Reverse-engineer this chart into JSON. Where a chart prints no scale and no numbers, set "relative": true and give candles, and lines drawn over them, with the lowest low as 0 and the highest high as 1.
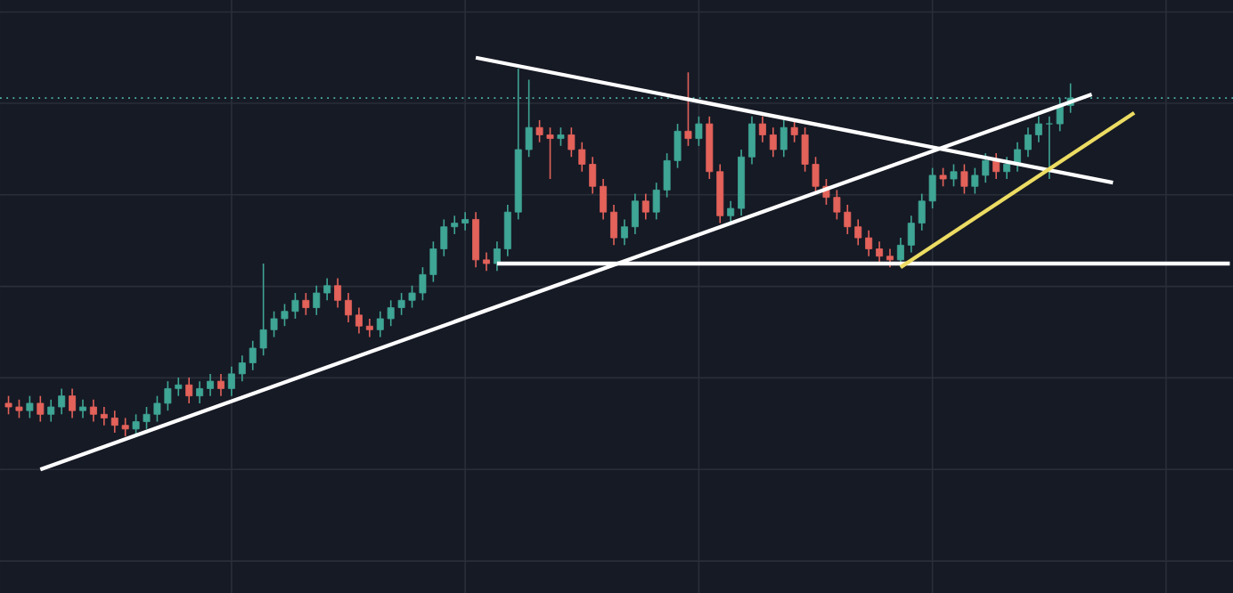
{
  "chart_data": {
    "type": "candlestick",
    "relative": true,
    "grid": true,
    "tick_labels": false,
    "categories": [
      null,
      null,
      null,
      null,
      null,
      null,
      null,
      null,
      null,
      null,
      null,
      null,
      null,
      null,
      null,
      null,
      null,
      null,
      null,
      null,
      null,
      null,
      null,
      null,
      null,
      null,
      null,
      null,
      null,
      null,
      null,
      null,
      null,
      null,
      null,
      null,
      null,
      null,
      null,
      null,
      null,
      null,
      null,
      null,
      null,
      null,
      null,
      null,
      null,
      null,
      null,
      null,
      null,
      null,
      null,
      null,
      null,
      null,
      null,
      null,
      null,
      null,
      null,
      null,
      null,
      null,
      null,
      null,
      null,
      null,
      null,
      null,
      null,
      null,
      null,
      null,
      null,
      null,
      null,
      null,
      null,
      null,
      null,
      null,
      null,
      null,
      null,
      null,
      null,
      null,
      null,
      null,
      null,
      null,
      null,
      null,
      null,
      null,
      null,
      null,
      null,
      null,
      null,
      null,
      null,
      null,
      null,
      null,
      null,
      null,
      null,
      null,
      null,
      null,
      null,
      null
    ],
    "ohlc": [
      [
        0.09,
        0.11,
        0.06,
        0.08
      ],
      [
        0.08,
        0.1,
        0.05,
        0.07
      ],
      [
        0.07,
        0.11,
        0.05,
        0.09
      ],
      [
        0.09,
        0.11,
        0.04,
        0.06
      ],
      [
        0.06,
        0.1,
        0.04,
        0.08
      ],
      [
        0.08,
        0.13,
        0.06,
        0.11
      ],
      [
        0.11,
        0.13,
        0.05,
        0.07
      ],
      [
        0.07,
        0.1,
        0.05,
        0.08
      ],
      [
        0.08,
        0.1,
        0.04,
        0.06
      ],
      [
        0.06,
        0.08,
        0.03,
        0.05
      ],
      [
        0.05,
        0.07,
        0.01,
        0.03
      ],
      [
        0.03,
        0.05,
        0,
        0.02
      ],
      [
        0.02,
        0.06,
        0,
        0.04
      ],
      [
        0.04,
        0.08,
        0.02,
        0.06
      ],
      [
        0.06,
        0.11,
        0.04,
        0.09
      ],
      [
        0.09,
        0.15,
        0.07,
        0.13
      ],
      [
        0.13,
        0.16,
        0.11,
        0.14
      ],
      [
        0.14,
        0.16,
        0.09,
        0.11
      ],
      [
        0.11,
        0.15,
        0.09,
        0.13
      ],
      [
        0.13,
        0.17,
        0.11,
        0.15
      ],
      [
        0.15,
        0.17,
        0.11,
        0.13
      ],
      [
        0.13,
        0.19,
        0.11,
        0.17
      ],
      [
        0.17,
        0.22,
        0.15,
        0.2
      ],
      [
        0.2,
        0.26,
        0.18,
        0.24
      ],
      [
        0.24,
        0.47,
        0.22,
        0.29
      ],
      [
        0.29,
        0.34,
        0.27,
        0.32
      ],
      [
        0.32,
        0.36,
        0.3,
        0.34
      ],
      [
        0.34,
        0.39,
        0.32,
        0.37
      ],
      [
        0.37,
        0.39,
        0.33,
        0.35
      ],
      [
        0.35,
        0.41,
        0.33,
        0.39
      ],
      [
        0.39,
        0.43,
        0.37,
        0.41
      ],
      [
        0.41,
        0.43,
        0.35,
        0.37
      ],
      [
        0.37,
        0.39,
        0.31,
        0.33
      ],
      [
        0.33,
        0.35,
        0.28,
        0.3
      ],
      [
        0.3,
        0.32,
        0.27,
        0.29
      ],
      [
        0.29,
        0.34,
        0.27,
        0.32
      ],
      [
        0.32,
        0.37,
        0.3,
        0.35
      ],
      [
        0.35,
        0.39,
        0.33,
        0.37
      ],
      [
        0.37,
        0.41,
        0.35,
        0.39
      ],
      [
        0.39,
        0.46,
        0.37,
        0.44
      ],
      [
        0.44,
        0.53,
        0.42,
        0.51
      ],
      [
        0.51,
        0.59,
        0.49,
        0.57
      ],
      [
        0.57,
        0.6,
        0.55,
        0.58
      ],
      [
        0.58,
        0.61,
        0.56,
        0.59
      ],
      [
        0.59,
        0.61,
        0.46,
        0.48
      ],
      [
        0.48,
        0.5,
        0.45,
        0.47
      ],
      [
        0.47,
        0.53,
        0.45,
        0.51
      ],
      [
        0.51,
        0.63,
        0.49,
        0.61
      ],
      [
        0.61,
        1,
        0.59,
        0.78
      ],
      [
        0.78,
        0.97,
        0.76,
        0.84
      ],
      [
        0.84,
        0.86,
        0.8,
        0.82
      ],
      [
        0.82,
        0.84,
        0.7,
        0.81
      ],
      [
        0.81,
        0.84,
        0.79,
        0.82
      ],
      [
        0.82,
        0.84,
        0.76,
        0.78
      ],
      [
        0.78,
        0.8,
        0.72,
        0.74
      ],
      [
        0.74,
        0.76,
        0.66,
        0.68
      ],
      [
        0.68,
        0.7,
        0.59,
        0.61
      ],
      [
        0.61,
        0.63,
        0.52,
        0.54
      ],
      [
        0.54,
        0.59,
        0.52,
        0.57
      ],
      [
        0.57,
        0.66,
        0.55,
        0.64
      ],
      [
        0.64,
        0.66,
        0.59,
        0.61
      ],
      [
        0.61,
        0.69,
        0.59,
        0.67
      ],
      [
        0.67,
        0.77,
        0.65,
        0.75
      ],
      [
        0.75,
        0.85,
        0.73,
        0.83
      ],
      [
        0.83,
        0.99,
        0.79,
        0.81
      ],
      [
        0.81,
        0.87,
        0.79,
        0.85
      ],
      [
        0.85,
        0.87,
        0.7,
        0.72
      ],
      [
        0.72,
        0.74,
        0.58,
        0.6
      ],
      [
        0.6,
        0.64,
        0.58,
        0.62
      ],
      [
        0.62,
        0.78,
        0.6,
        0.76
      ],
      [
        0.76,
        0.87,
        0.74,
        0.85
      ],
      [
        0.85,
        0.87,
        0.8,
        0.82
      ],
      [
        0.82,
        0.84,
        0.76,
        0.78
      ],
      [
        0.78,
        0.86,
        0.76,
        0.84
      ],
      [
        0.84,
        0.86,
        0.8,
        0.82
      ],
      [
        0.82,
        0.84,
        0.72,
        0.74
      ],
      [
        0.74,
        0.76,
        0.66,
        0.68
      ],
      [
        0.68,
        0.7,
        0.63,
        0.65
      ],
      [
        0.65,
        0.67,
        0.59,
        0.61
      ],
      [
        0.61,
        0.63,
        0.55,
        0.57
      ],
      [
        0.57,
        0.59,
        0.52,
        0.54
      ],
      [
        0.54,
        0.56,
        0.49,
        0.51
      ],
      [
        0.51,
        0.53,
        0.47,
        0.49
      ],
      [
        0.49,
        0.51,
        0.46,
        0.48
      ],
      [
        0.48,
        0.54,
        0.46,
        0.52
      ],
      [
        0.52,
        0.6,
        0.5,
        0.58
      ],
      [
        0.58,
        0.66,
        0.56,
        0.64
      ],
      [
        0.64,
        0.73,
        0.62,
        0.71
      ],
      [
        0.71,
        0.73,
        0.68,
        0.7
      ],
      [
        0.7,
        0.74,
        0.68,
        0.72
      ],
      [
        0.72,
        0.74,
        0.66,
        0.68
      ],
      [
        0.68,
        0.73,
        0.66,
        0.71
      ],
      [
        0.71,
        0.77,
        0.69,
        0.75
      ],
      [
        0.75,
        0.77,
        0.7,
        0.72
      ],
      [
        0.72,
        0.76,
        0.7,
        0.74
      ],
      [
        0.74,
        0.8,
        0.72,
        0.78
      ],
      [
        0.78,
        0.84,
        0.76,
        0.82
      ],
      [
        0.82,
        0.87,
        0.8,
        0.85
      ],
      [
        0.85,
        0.87,
        0.7,
        0.85
      ],
      [
        0.85,
        0.92,
        0.83,
        0.9
      ],
      [
        0.9,
        0.96,
        0.88,
        0.92
      ],
      null,
      null,
      null,
      null,
      null,
      null,
      null,
      null,
      null,
      null,
      null,
      null,
      null,
      null,
      null
    ],
    "series": [
      {
        "type": "line",
        "color": "#ffffff",
        "values": [
          null,
          null,
          null,
          -0.09,
          null,
          null,
          null,
          null,
          null,
          null,
          null,
          null,
          null,
          null,
          null,
          null,
          null,
          null,
          null,
          null,
          null,
          null,
          null,
          null,
          null,
          null,
          null,
          null,
          null,
          null,
          null,
          null,
          null,
          null,
          null,
          null,
          null,
          null,
          null,
          null,
          null,
          null,
          null,
          null,
          null,
          null,
          null,
          null,
          null,
          null,
          null,
          null,
          null,
          null,
          null,
          null,
          null,
          null,
          null,
          null,
          null,
          null,
          null,
          null,
          null,
          null,
          null,
          null,
          null,
          null,
          null,
          null,
          null,
          null,
          null,
          null,
          null,
          null,
          null,
          null,
          null,
          null,
          null,
          null,
          null,
          null,
          null,
          null,
          null,
          null,
          null,
          null,
          null,
          null,
          null,
          null,
          null,
          null,
          null,
          null,
          null,
          null,
          0.93,
          null,
          null,
          null,
          null,
          null,
          null,
          null,
          null,
          null,
          null,
          null,
          null,
          null
        ]
      },
      {
        "type": "line",
        "color": "#ffffff",
        "values": [
          null,
          null,
          null,
          null,
          null,
          null,
          null,
          null,
          null,
          null,
          null,
          null,
          null,
          null,
          null,
          null,
          null,
          null,
          null,
          null,
          null,
          null,
          null,
          null,
          null,
          null,
          null,
          null,
          null,
          null,
          null,
          null,
          null,
          null,
          null,
          null,
          null,
          null,
          null,
          null,
          null,
          null,
          null,
          null,
          1.03,
          null,
          null,
          null,
          null,
          null,
          null,
          null,
          null,
          null,
          null,
          null,
          null,
          null,
          null,
          null,
          null,
          null,
          null,
          null,
          null,
          null,
          null,
          null,
          null,
          null,
          null,
          null,
          null,
          null,
          null,
          null,
          null,
          null,
          null,
          null,
          null,
          null,
          null,
          null,
          null,
          null,
          null,
          null,
          null,
          null,
          null,
          null,
          null,
          null,
          null,
          null,
          null,
          null,
          null,
          null,
          null,
          null,
          null,
          null,
          0.69,
          null,
          null,
          null,
          null,
          null,
          null,
          null,
          null,
          null,
          null,
          null
        ]
      },
      {
        "type": "line",
        "color": "#ffffff",
        "values": [
          null,
          null,
          null,
          null,
          null,
          null,
          null,
          null,
          null,
          null,
          null,
          null,
          null,
          null,
          null,
          null,
          null,
          null,
          null,
          null,
          null,
          null,
          null,
          null,
          null,
          null,
          null,
          null,
          null,
          null,
          null,
          null,
          null,
          null,
          null,
          null,
          null,
          null,
          null,
          null,
          null,
          null,
          null,
          null,
          null,
          null,
          0.47,
          null,
          null,
          null,
          null,
          null,
          null,
          null,
          null,
          null,
          null,
          null,
          null,
          null,
          null,
          null,
          null,
          null,
          null,
          null,
          null,
          null,
          null,
          null,
          null,
          null,
          null,
          null,
          null,
          null,
          null,
          null,
          null,
          null,
          null,
          null,
          null,
          null,
          null,
          null,
          null,
          null,
          null,
          null,
          null,
          null,
          null,
          null,
          null,
          null,
          null,
          null,
          null,
          null,
          null,
          null,
          null,
          null,
          null,
          null,
          null,
          null,
          null,
          null,
          null,
          null,
          null,
          null,
          null,
          0.47
        ]
      },
      {
        "type": "line",
        "color": "#ecdc63",
        "values": [
          null,
          null,
          null,
          null,
          null,
          null,
          null,
          null,
          null,
          null,
          null,
          null,
          null,
          null,
          null,
          null,
          null,
          null,
          null,
          null,
          null,
          null,
          null,
          null,
          null,
          null,
          null,
          null,
          null,
          null,
          null,
          null,
          null,
          null,
          null,
          null,
          null,
          null,
          null,
          null,
          null,
          null,
          null,
          null,
          null,
          null,
          null,
          null,
          null,
          null,
          null,
          null,
          null,
          null,
          null,
          null,
          null,
          null,
          null,
          null,
          null,
          null,
          null,
          null,
          null,
          null,
          null,
          null,
          null,
          null,
          null,
          null,
          null,
          null,
          null,
          null,
          null,
          null,
          null,
          null,
          null,
          null,
          null,
          null,
          0.46,
          null,
          null,
          null,
          null,
          null,
          null,
          null,
          null,
          null,
          null,
          null,
          null,
          null,
          null,
          null,
          null,
          null,
          null,
          null,
          null,
          null,
          0.88,
          null,
          null,
          null,
          null,
          null,
          null,
          null,
          null,
          null
        ]
      }
    ],
    "ref_lines": [
      {
        "axis": "y",
        "value": 0.92,
        "color": "#4fb3a9",
        "line_style": "dotted"
      }
    ]
  }
}
